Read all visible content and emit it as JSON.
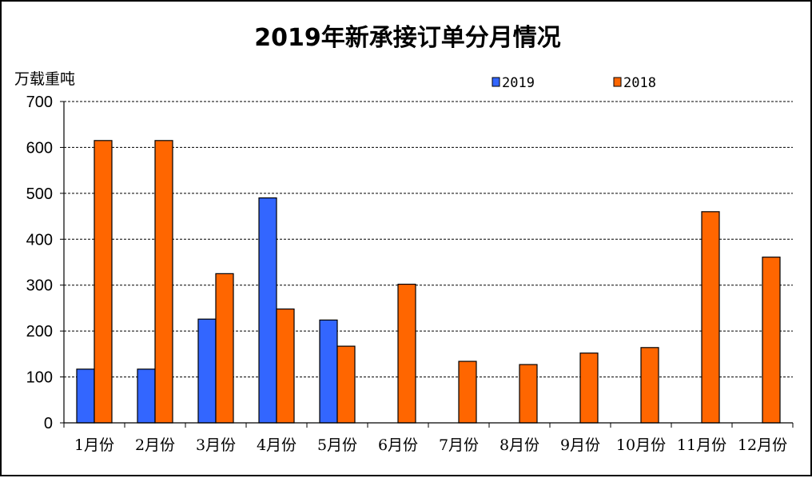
{
  "chart_data": {
    "type": "bar",
    "title": "2019年新承接订单分月情况",
    "ylabel": "万载重吨",
    "xlabel": "",
    "ylim": [
      0,
      700
    ],
    "yticks": [
      0,
      100,
      200,
      300,
      400,
      500,
      600,
      700
    ],
    "ytick_labels": [
      "0",
      "100",
      "200",
      "300",
      "400",
      "500",
      "600",
      "700"
    ],
    "categories": [
      "1月份",
      "2月份",
      "3月份",
      "4月份",
      "5月份",
      "6月份",
      "7月份",
      "8月份",
      "9月份",
      "10月份",
      "11月份",
      "12月份"
    ],
    "series": [
      {
        "name": "2019",
        "color": "#3366FF",
        "values": [
          117,
          117,
          226,
          490,
          224,
          null,
          null,
          null,
          null,
          null,
          null,
          null
        ]
      },
      {
        "name": "2018",
        "color": "#FF6600",
        "values": [
          615,
          615,
          325,
          248,
          167,
          302,
          134,
          127,
          152,
          164,
          460,
          361
        ]
      }
    ],
    "grid": "horizontal dashed",
    "legend": "top"
  }
}
